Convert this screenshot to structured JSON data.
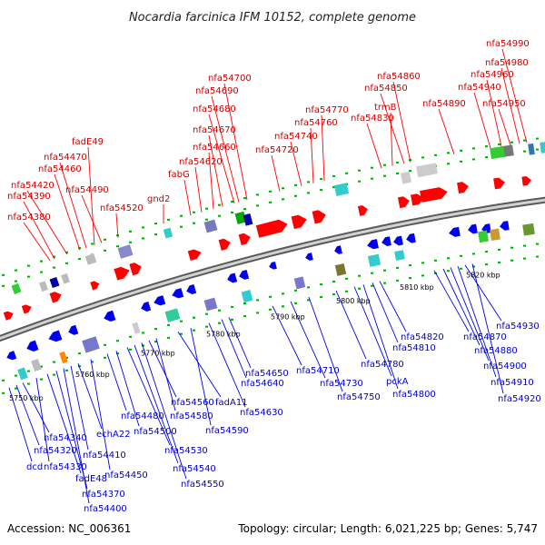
{
  "title": "Nocardia farcinica IFM 10152, complete genome",
  "footer": {
    "accession": "Accession: NC_006361",
    "info": "Topology: circular; Length: 6,021,225 bp; Genes: 5,747"
  },
  "colors": {
    "forward_gene": "#ff0000",
    "reverse_gene": "#0000ee",
    "forward_label": "#cc0000",
    "reverse_label": "#0000cc",
    "backbone": "#888888",
    "tick": "#00aa00"
  },
  "kbp_ticks": [
    "5750 kbp",
    "5760 kbp",
    "5770 kbp",
    "5780 kbp",
    "5790 kbp",
    "5800 kbp",
    "5810 kbp",
    "5820 kbp"
  ],
  "top_labels": [
    "nfa54380",
    "nfa54390",
    "nfa54420",
    "nfa54460",
    "nfa54470",
    "fadE49",
    "nfa54490",
    "nfa54520",
    "gnd2",
    "fabG",
    "nfa54620",
    "nfa54660",
    "nfa54670",
    "nfa54680",
    "nfa54690",
    "nfa54700",
    "nfa54720",
    "nfa54740",
    "nfa54760",
    "nfa54770",
    "nfa54830",
    "trmB",
    "nfa54850",
    "nfa54860",
    "nfa54890",
    "nfa54950",
    "nfa54940",
    "nfa54960",
    "nfa54980",
    "nfa54990"
  ],
  "bottom_labels": [
    "dcd",
    "nfa54320",
    "nfa54340",
    "nfa54330",
    "fadE48",
    "nfa54370",
    "nfa54400",
    "nfa54410",
    "echA22",
    "nfa54450",
    "nfa54480",
    "nfa54500",
    "nfa54530",
    "nfa54540",
    "nfa54550",
    "nfa54560",
    "nfa54580",
    "fadA11",
    "nfa54590",
    "nfa54630",
    "nfa54640",
    "nfa54650",
    "nfa54710",
    "nfa54730",
    "nfa54750",
    "nfa54780",
    "pckA",
    "nfa54800",
    "nfa54810",
    "nfa54820",
    "nfa54870",
    "nfa54880",
    "nfa54900",
    "nfa54910",
    "nfa54930",
    "nfa54920"
  ]
}
